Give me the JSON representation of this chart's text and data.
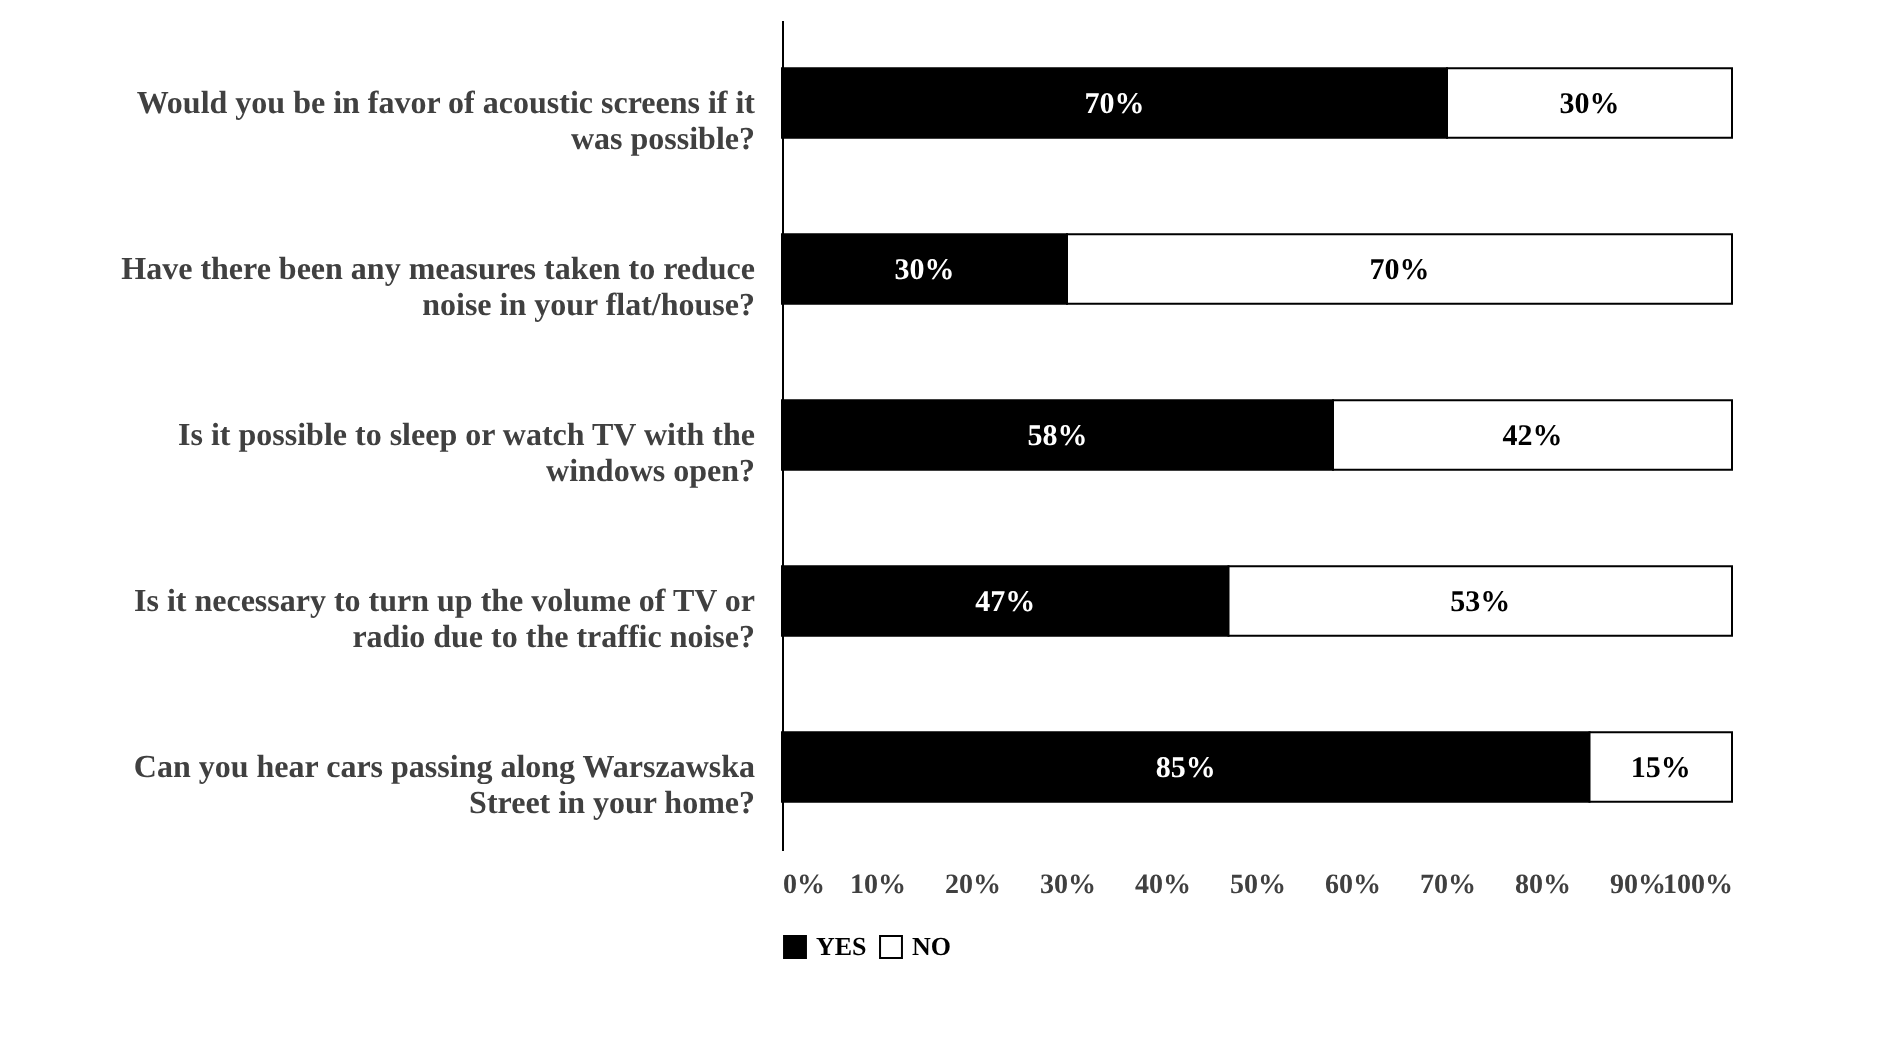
{
  "chart_data": {
    "type": "bar",
    "orientation": "horizontal",
    "stacked": true,
    "categories": [
      "Would you be in favor of acoustic screens if it was possible?",
      "Have there been any measures taken to reduce noise in your flat/house?",
      "Is it possible to sleep or watch TV with the windows open?",
      "Is it necessary to turn up the volume of TV or radio due to the traffic noise?",
      "Can you hear cars passing along Warszawska Street in your home?"
    ],
    "series": [
      {
        "name": "YES",
        "color": "#000000",
        "values": [
          70,
          30,
          58,
          47,
          85
        ],
        "value_labels": [
          "70%",
          "30%",
          "58%",
          "47%",
          "85%"
        ]
      },
      {
        "name": "NO",
        "color": "#ffffff",
        "values": [
          30,
          70,
          42,
          53,
          15
        ],
        "value_labels": [
          "30%",
          "70%",
          "42%",
          "53%",
          "15%"
        ]
      }
    ],
    "xlim": [
      0,
      100
    ],
    "xticks": [
      {
        "value": 0,
        "label": "0%"
      },
      {
        "value": 10,
        "label": "10%"
      },
      {
        "value": 20,
        "label": "20%"
      },
      {
        "value": 30,
        "label": "30%"
      },
      {
        "value": 40,
        "label": "40%"
      },
      {
        "value": 50,
        "label": "50%"
      },
      {
        "value": 60,
        "label": "60%"
      },
      {
        "value": 70,
        "label": "70%"
      },
      {
        "value": 80,
        "label": "80%"
      },
      {
        "value": 90,
        "label": "90%"
      },
      {
        "value": 100,
        "label": "100%"
      }
    ],
    "grid": false,
    "legend": "bottom left"
  }
}
